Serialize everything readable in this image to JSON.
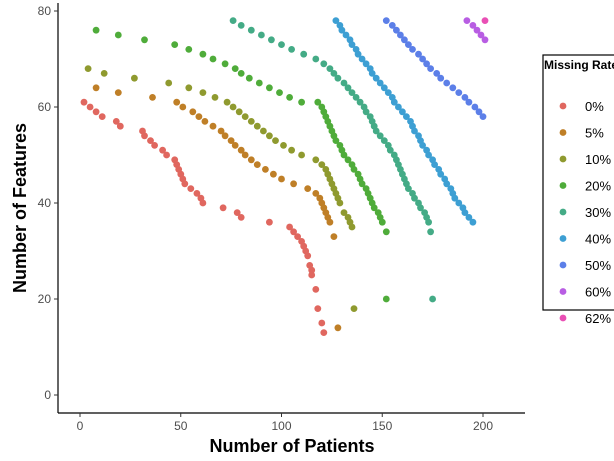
{
  "chart_data": {
    "type": "scatter",
    "title": "",
    "xlabel": "Number of Patients",
    "ylabel": "Number of Features",
    "xlim": [
      -5,
      210
    ],
    "ylim": [
      -3,
      82
    ],
    "x_ticks": [
      0,
      50,
      100,
      150,
      200
    ],
    "y_ticks": [
      0,
      20,
      40,
      60,
      80
    ],
    "grid": false,
    "legend": {
      "title": "Missing Rate",
      "position": "right"
    },
    "series": [
      {
        "name": "0%",
        "color": "#e0675f",
        "points": [
          [
            2,
            61
          ],
          [
            5,
            60
          ],
          [
            8,
            59
          ],
          [
            11,
            58
          ],
          [
            18,
            57
          ],
          [
            20,
            56
          ],
          [
            31,
            55
          ],
          [
            32,
            54
          ],
          [
            35,
            53
          ],
          [
            37,
            52
          ],
          [
            41,
            51
          ],
          [
            43,
            50
          ],
          [
            47,
            49
          ],
          [
            48,
            48
          ],
          [
            49,
            47
          ],
          [
            50,
            46
          ],
          [
            51,
            45
          ],
          [
            52,
            44
          ],
          [
            55,
            43
          ],
          [
            58,
            42
          ],
          [
            60,
            41
          ],
          [
            61,
            40
          ],
          [
            71,
            39
          ],
          [
            78,
            38
          ],
          [
            80,
            37
          ],
          [
            94,
            36
          ],
          [
            104,
            35
          ],
          [
            106,
            34
          ],
          [
            108,
            33
          ],
          [
            110,
            32
          ],
          [
            111,
            31
          ],
          [
            112,
            30
          ],
          [
            113,
            29
          ],
          [
            114,
            27
          ],
          [
            115,
            26
          ],
          [
            115,
            25
          ],
          [
            117,
            22
          ],
          [
            118,
            18
          ],
          [
            120,
            15
          ],
          [
            121,
            13
          ]
        ]
      },
      {
        "name": "5%",
        "color": "#bf7f27",
        "points": [
          [
            8,
            64
          ],
          [
            19,
            63
          ],
          [
            36,
            62
          ],
          [
            48,
            61
          ],
          [
            51,
            60
          ],
          [
            56,
            59
          ],
          [
            59,
            58
          ],
          [
            62,
            57
          ],
          [
            66,
            56
          ],
          [
            70,
            55
          ],
          [
            72,
            54
          ],
          [
            75,
            53
          ],
          [
            77,
            52
          ],
          [
            80,
            51
          ],
          [
            82,
            50
          ],
          [
            85,
            49
          ],
          [
            88,
            48
          ],
          [
            92,
            47
          ],
          [
            96,
            46
          ],
          [
            100,
            45
          ],
          [
            106,
            44
          ],
          [
            113,
            43
          ],
          [
            117,
            42
          ],
          [
            119,
            41
          ],
          [
            120,
            40
          ],
          [
            121,
            39
          ],
          [
            122,
            38
          ],
          [
            123,
            37
          ],
          [
            124,
            36
          ],
          [
            126,
            33
          ],
          [
            128,
            14
          ]
        ]
      },
      {
        "name": "10%",
        "color": "#8f9a2f",
        "points": [
          [
            4,
            68
          ],
          [
            12,
            67
          ],
          [
            27,
            66
          ],
          [
            44,
            65
          ],
          [
            54,
            64
          ],
          [
            61,
            63
          ],
          [
            67,
            62
          ],
          [
            73,
            61
          ],
          [
            76,
            60
          ],
          [
            79,
            59
          ],
          [
            82,
            58
          ],
          [
            85,
            57
          ],
          [
            88,
            56
          ],
          [
            91,
            55
          ],
          [
            94,
            54
          ],
          [
            97,
            53
          ],
          [
            101,
            52
          ],
          [
            105,
            51
          ],
          [
            110,
            50
          ],
          [
            117,
            49
          ],
          [
            120,
            48
          ],
          [
            122,
            47
          ],
          [
            123,
            46
          ],
          [
            124,
            45
          ],
          [
            125,
            44
          ],
          [
            126,
            43
          ],
          [
            127,
            42
          ],
          [
            128,
            41
          ],
          [
            129,
            40
          ],
          [
            131,
            38
          ],
          [
            133,
            37
          ],
          [
            134,
            36
          ],
          [
            135,
            35
          ],
          [
            136,
            18
          ]
        ]
      },
      {
        "name": "20%",
        "color": "#4fac3a",
        "points": [
          [
            8,
            76
          ],
          [
            19,
            75
          ],
          [
            32,
            74
          ],
          [
            47,
            73
          ],
          [
            54,
            72
          ],
          [
            61,
            71
          ],
          [
            66,
            70
          ],
          [
            72,
            69
          ],
          [
            77,
            68
          ],
          [
            80,
            67
          ],
          [
            84,
            66
          ],
          [
            89,
            65
          ],
          [
            94,
            64
          ],
          [
            99,
            63
          ],
          [
            104,
            62
          ],
          [
            110,
            61
          ],
          [
            118,
            61
          ],
          [
            120,
            60
          ],
          [
            121,
            59
          ],
          [
            122,
            58
          ],
          [
            123,
            57
          ],
          [
            124,
            56
          ],
          [
            125,
            55
          ],
          [
            126,
            54
          ],
          [
            127,
            53
          ],
          [
            129,
            52
          ],
          [
            130,
            51
          ],
          [
            131,
            50
          ],
          [
            133,
            49
          ],
          [
            135,
            48
          ],
          [
            136,
            47
          ],
          [
            138,
            46
          ],
          [
            139,
            45
          ],
          [
            140,
            44
          ],
          [
            142,
            43
          ],
          [
            143,
            42
          ],
          [
            144,
            41
          ],
          [
            145,
            40
          ],
          [
            146,
            39
          ],
          [
            148,
            38
          ],
          [
            149,
            37
          ],
          [
            150,
            36
          ],
          [
            152,
            34
          ],
          [
            152,
            20
          ]
        ]
      },
      {
        "name": "30%",
        "color": "#44ab86",
        "points": [
          [
            76,
            78
          ],
          [
            80,
            77
          ],
          [
            85,
            76
          ],
          [
            90,
            75
          ],
          [
            95,
            74
          ],
          [
            100,
            73
          ],
          [
            105,
            72
          ],
          [
            111,
            71
          ],
          [
            117,
            70
          ],
          [
            121,
            69
          ],
          [
            124,
            68
          ],
          [
            126,
            67
          ],
          [
            128,
            66
          ],
          [
            131,
            65
          ],
          [
            133,
            64
          ],
          [
            135,
            63
          ],
          [
            137,
            62
          ],
          [
            139,
            61
          ],
          [
            141,
            60
          ],
          [
            142,
            59
          ],
          [
            144,
            58
          ],
          [
            145,
            57
          ],
          [
            146,
            56
          ],
          [
            147,
            55
          ],
          [
            149,
            54
          ],
          [
            151,
            53
          ],
          [
            153,
            52
          ],
          [
            154,
            51
          ],
          [
            156,
            50
          ],
          [
            157,
            49
          ],
          [
            158,
            48
          ],
          [
            159,
            47
          ],
          [
            160,
            46
          ],
          [
            161,
            45
          ],
          [
            162,
            44
          ],
          [
            163,
            43
          ],
          [
            165,
            42
          ],
          [
            166,
            41
          ],
          [
            168,
            40
          ],
          [
            169,
            39
          ],
          [
            171,
            38
          ],
          [
            172,
            37
          ],
          [
            173,
            36
          ],
          [
            174,
            34
          ],
          [
            175,
            20
          ]
        ]
      },
      {
        "name": "40%",
        "color": "#3d9fd3",
        "points": [
          [
            127,
            78
          ],
          [
            129,
            77
          ],
          [
            130,
            76
          ],
          [
            132,
            75
          ],
          [
            134,
            74
          ],
          [
            135,
            73
          ],
          [
            137,
            72
          ],
          [
            138,
            71
          ],
          [
            140,
            70
          ],
          [
            142,
            69
          ],
          [
            144,
            68
          ],
          [
            145,
            67
          ],
          [
            147,
            66
          ],
          [
            149,
            65
          ],
          [
            151,
            64
          ],
          [
            153,
            63
          ],
          [
            155,
            62
          ],
          [
            156,
            61
          ],
          [
            158,
            60
          ],
          [
            160,
            59
          ],
          [
            162,
            58
          ],
          [
            164,
            57
          ],
          [
            165,
            56
          ],
          [
            166,
            55
          ],
          [
            168,
            54
          ],
          [
            169,
            53
          ],
          [
            170,
            52
          ],
          [
            172,
            51
          ],
          [
            173,
            50
          ],
          [
            175,
            49
          ],
          [
            176,
            48
          ],
          [
            178,
            47
          ],
          [
            179,
            46
          ],
          [
            181,
            45
          ],
          [
            182,
            44
          ],
          [
            184,
            43
          ],
          [
            185,
            42
          ],
          [
            186,
            41
          ],
          [
            188,
            40
          ],
          [
            190,
            39
          ],
          [
            191,
            38
          ],
          [
            193,
            37
          ],
          [
            195,
            36
          ]
        ]
      },
      {
        "name": "50%",
        "color": "#5c7fe8",
        "points": [
          [
            152,
            78
          ],
          [
            155,
            77
          ],
          [
            157,
            76
          ],
          [
            159,
            75
          ],
          [
            161,
            74
          ],
          [
            163,
            73
          ],
          [
            165,
            72
          ],
          [
            168,
            71
          ],
          [
            170,
            70
          ],
          [
            172,
            69
          ],
          [
            174,
            68
          ],
          [
            177,
            67
          ],
          [
            179,
            66
          ],
          [
            182,
            65
          ],
          [
            185,
            64
          ],
          [
            188,
            63
          ],
          [
            191,
            62
          ],
          [
            193,
            61
          ],
          [
            196,
            60
          ],
          [
            198,
            59
          ],
          [
            200,
            58
          ]
        ]
      },
      {
        "name": "60%",
        "color": "#b85de3",
        "points": [
          [
            192,
            78
          ],
          [
            195,
            77
          ],
          [
            197,
            76
          ],
          [
            199,
            75
          ],
          [
            201,
            74
          ]
        ]
      },
      {
        "name": "62%",
        "color": "#e94fb5",
        "points": [
          [
            201,
            78
          ]
        ]
      }
    ]
  }
}
